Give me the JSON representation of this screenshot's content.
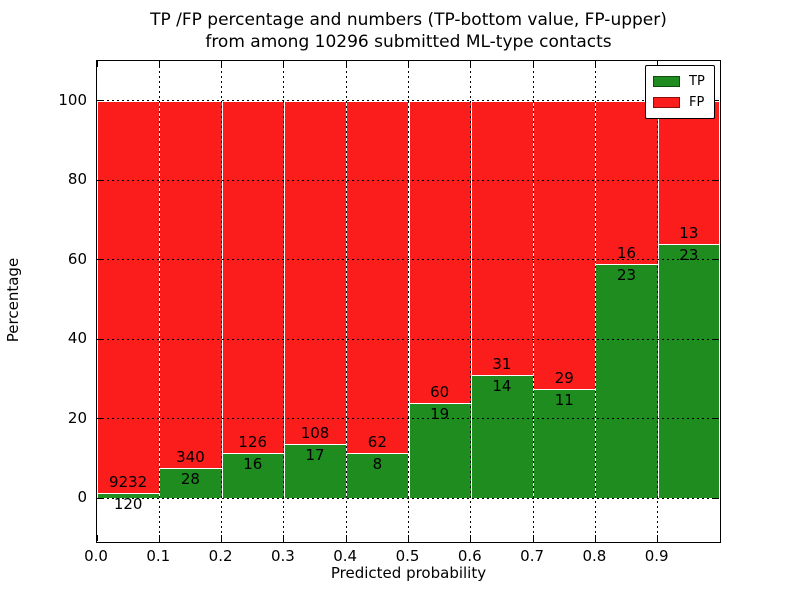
{
  "title": {
    "line1": "TP /FP percentage and numbers (TP-bottom value, FP-upper)",
    "line2": "from among 10296 submitted ML-type contacts"
  },
  "chart_data": {
    "type": "bar",
    "subtype": "stacked-100-percent",
    "title": "TP /FP percentage and numbers (TP-bottom value, FP-upper)\nfrom among 10296 submitted ML-type contacts",
    "xlabel": "Predicted probability",
    "ylabel": "Percentage",
    "total_contacts": 10296,
    "bins": [
      0.0,
      0.1,
      0.2,
      0.3,
      0.4,
      0.5,
      0.6,
      0.7,
      0.8,
      0.9
    ],
    "bin_width": 0.1,
    "series": [
      {
        "name": "TP",
        "color": "#1e8c1e",
        "counts": [
          120,
          28,
          16,
          17,
          8,
          19,
          14,
          11,
          23,
          23
        ]
      },
      {
        "name": "FP",
        "color": "#fb1c1c",
        "counts": [
          9232,
          340,
          126,
          108,
          62,
          60,
          31,
          29,
          16,
          13
        ]
      }
    ],
    "tp_percent_of_bin": [
      1.3,
      7.6,
      11.3,
      13.6,
      11.4,
      24.1,
      31.1,
      27.5,
      59.0,
      63.9
    ],
    "label_convention": "TP count below boundary, FP count above boundary",
    "xtick_positions": [
      0.0,
      0.1,
      0.2,
      0.3,
      0.4,
      0.5,
      0.6,
      0.7,
      0.8,
      0.9,
      1.0
    ],
    "xtick_labels": [
      "0.0",
      "0.1",
      "0.2",
      "0.3",
      "0.4",
      "0.5",
      "0.6",
      "0.7",
      "0.8",
      "0.9",
      ""
    ],
    "ytick_positions": [
      0,
      20,
      40,
      60,
      80,
      100
    ],
    "ytick_labels": [
      "0",
      "20",
      "40",
      "60",
      "80",
      "100"
    ],
    "xlim": [
      0.0,
      1.0
    ],
    "ylim": [
      -11,
      110
    ],
    "grid": {
      "style": "dotted",
      "color": "#000000"
    },
    "bar_edge_color": "#ffffff",
    "legend": {
      "position": "upper-right",
      "entries": [
        {
          "label": "TP",
          "color": "#1e8c1e"
        },
        {
          "label": "FP",
          "color": "#fb1c1c"
        }
      ]
    }
  }
}
